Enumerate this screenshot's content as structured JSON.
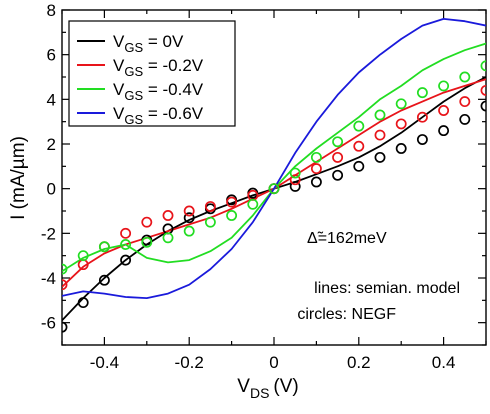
{
  "chart_data": {
    "type": "line",
    "title": "",
    "xlabel_main": "V",
    "xlabel_sub": "DS",
    "xlabel_unit": "(V)",
    "ylabel": "I (mA/µm)",
    "xlim": [
      -0.5,
      0.5
    ],
    "ylim": [
      -7,
      8
    ],
    "xticks": [
      -0.4,
      -0.2,
      0,
      0.2,
      0.4
    ],
    "xtick_labels": [
      "-0.4",
      "-0.2",
      "0",
      "0.2",
      "0.4"
    ],
    "yticks": [
      -6,
      -4,
      -2,
      0,
      2,
      4,
      6,
      8
    ],
    "ytick_labels": [
      "-6",
      "-4",
      "-2",
      "0",
      "2",
      "4",
      "6",
      "8"
    ],
    "grid": false,
    "legend_position": "top-left",
    "annotations": {
      "delta_symbol": "Δ̃",
      "delta_value": "=162meV",
      "lines_note": "lines: semian. model",
      "circles_note": "circles: NEGF"
    },
    "series": [
      {
        "legend_main": "V",
        "legend_sub": "GS",
        "legend_value": " = 0V",
        "color": "#000000",
        "line": {
          "x": [
            -0.5,
            -0.45,
            -0.4,
            -0.35,
            -0.3,
            -0.25,
            -0.2,
            -0.15,
            -0.1,
            -0.05,
            0,
            0.05,
            0.1,
            0.15,
            0.2,
            0.25,
            0.3,
            0.35,
            0.4,
            0.45,
            0.5
          ],
          "y": [
            -5.9,
            -4.9,
            -4.0,
            -3.2,
            -2.5,
            -1.9,
            -1.4,
            -1.0,
            -0.65,
            -0.3,
            0,
            0.3,
            0.65,
            1.0,
            1.4,
            1.9,
            2.5,
            3.2,
            3.9,
            4.5,
            5.0
          ]
        },
        "circles": {
          "x": [
            -0.5,
            -0.45,
            -0.4,
            -0.35,
            -0.3,
            -0.25,
            -0.2,
            -0.15,
            -0.1,
            -0.05,
            0,
            0.05,
            0.1,
            0.15,
            0.2,
            0.25,
            0.3,
            0.35,
            0.4,
            0.45,
            0.5
          ],
          "y": [
            -6.2,
            -5.1,
            -4.1,
            -3.2,
            -2.3,
            -1.8,
            -1.3,
            -0.9,
            -0.5,
            -0.2,
            0,
            0.1,
            0.3,
            0.6,
            1.0,
            1.4,
            1.8,
            2.2,
            2.6,
            3.1,
            3.7
          ]
        }
      },
      {
        "legend_main": "V",
        "legend_sub": "GS",
        "legend_value": " = -0.2V",
        "color": "#e8141a",
        "line": {
          "x": [
            -0.5,
            -0.45,
            -0.4,
            -0.35,
            -0.3,
            -0.25,
            -0.2,
            -0.15,
            -0.1,
            -0.05,
            0,
            0.05,
            0.1,
            0.15,
            0.2,
            0.25,
            0.3,
            0.35,
            0.4,
            0.45,
            0.5
          ],
          "y": [
            -4.4,
            -3.5,
            -2.9,
            -2.5,
            -2.2,
            -1.9,
            -1.6,
            -1.3,
            -0.9,
            -0.45,
            0,
            0.6,
            1.2,
            1.8,
            2.4,
            3.0,
            3.5,
            3.9,
            4.3,
            4.6,
            4.9
          ]
        },
        "circles": {
          "x": [
            -0.5,
            -0.45,
            -0.4,
            -0.35,
            -0.3,
            -0.25,
            -0.2,
            -0.15,
            -0.1,
            -0.05,
            0,
            0.05,
            0.1,
            0.15,
            0.2,
            0.25,
            0.3,
            0.35,
            0.4,
            0.45,
            0.5
          ],
          "y": [
            -4.3,
            -3.4,
            -2.6,
            -2.0,
            -1.5,
            -1.2,
            -1.0,
            -0.8,
            -0.6,
            -0.3,
            0,
            0.4,
            0.9,
            1.4,
            1.9,
            2.4,
            2.9,
            3.2,
            3.5,
            3.9,
            4.4
          ]
        }
      },
      {
        "legend_main": "V",
        "legend_sub": "GS",
        "legend_value": " = -0.4V",
        "color": "#22dd22",
        "line": {
          "x": [
            -0.5,
            -0.45,
            -0.4,
            -0.35,
            -0.3,
            -0.25,
            -0.2,
            -0.15,
            -0.1,
            -0.05,
            0,
            0.05,
            0.1,
            0.15,
            0.2,
            0.25,
            0.3,
            0.35,
            0.4,
            0.45,
            0.5
          ],
          "y": [
            -3.7,
            -3.1,
            -2.7,
            -2.5,
            -3.1,
            -3.3,
            -3.2,
            -2.8,
            -2.2,
            -1.2,
            0,
            1.0,
            1.8,
            2.5,
            3.2,
            4.0,
            4.6,
            5.3,
            5.8,
            6.2,
            6.5
          ]
        },
        "circles": {
          "x": [
            -0.5,
            -0.45,
            -0.4,
            -0.35,
            -0.3,
            -0.25,
            -0.2,
            -0.15,
            -0.1,
            -0.05,
            0,
            0.05,
            0.1,
            0.15,
            0.2,
            0.25,
            0.3,
            0.35,
            0.4,
            0.45,
            0.5
          ],
          "y": [
            -3.6,
            -3.0,
            -2.6,
            -2.5,
            -2.4,
            -2.2,
            -1.9,
            -1.5,
            -1.2,
            -0.7,
            0,
            0.7,
            1.4,
            2.1,
            2.8,
            3.3,
            3.8,
            4.3,
            4.6,
            5.0,
            5.5
          ]
        }
      },
      {
        "legend_main": "V",
        "legend_sub": "GS",
        "legend_value": " = -0.6V",
        "color": "#1a1adb",
        "line": {
          "x": [
            -0.5,
            -0.45,
            -0.4,
            -0.35,
            -0.3,
            -0.25,
            -0.2,
            -0.15,
            -0.1,
            -0.05,
            0,
            0.05,
            0.1,
            0.15,
            0.2,
            0.25,
            0.3,
            0.35,
            0.4,
            0.45,
            0.5
          ],
          "y": [
            -4.8,
            -4.6,
            -4.7,
            -4.85,
            -4.9,
            -4.7,
            -4.3,
            -3.6,
            -2.7,
            -1.5,
            0,
            1.6,
            3.0,
            4.2,
            5.2,
            6.0,
            6.7,
            7.3,
            7.6,
            7.5,
            7.3
          ]
        }
      }
    ]
  }
}
